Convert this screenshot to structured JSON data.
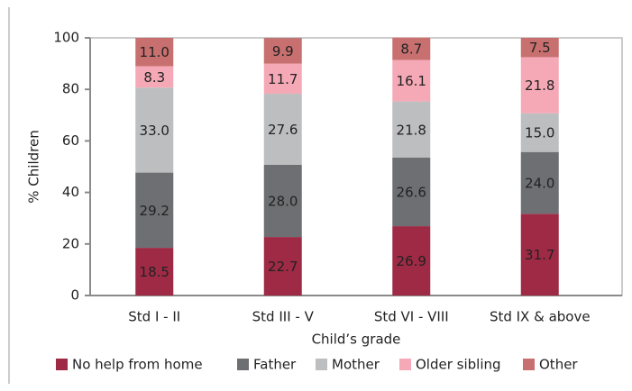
{
  "chart_data": {
    "type": "stacked_bar",
    "x_label": "Child’s grade",
    "y_label": "% Children",
    "categories": [
      "Std I - II",
      "Std III - V",
      "Std VI - VIII",
      "Std IX & above"
    ],
    "ylim": [
      0,
      100
    ],
    "yticks": [
      0,
      20,
      40,
      60,
      80,
      100
    ],
    "grid": false,
    "legend": "bottom",
    "series": [
      {
        "name": "No help from home",
        "color": "#9e2a45",
        "values": [
          18.5,
          22.7,
          26.9,
          31.7
        ],
        "value_labels": [
          "18.5",
          "22.7",
          "26.9",
          "31.7"
        ]
      },
      {
        "name": "Father",
        "color": "#6e6f73",
        "values": [
          29.2,
          28,
          26.6,
          24
        ],
        "value_labels": [
          "29.2",
          "28.0",
          "26.6",
          "24.0"
        ]
      },
      {
        "name": "Mother",
        "color": "#bdbec0",
        "values": [
          33,
          27.6,
          21.8,
          15
        ],
        "value_labels": [
          "33.0",
          "27.6",
          "21.8",
          "15.0"
        ]
      },
      {
        "name": "Older sibling",
        "color": "#f5a9b6",
        "values": [
          8.3,
          11.7,
          16.1,
          21.8
        ],
        "value_labels": [
          "8.3",
          "11.7",
          "16.1",
          "21.8"
        ]
      },
      {
        "name": "Other",
        "color": "#c8706f",
        "values": [
          11,
          9.9,
          8.7,
          7.5
        ],
        "value_labels": [
          "11.0",
          "9.9",
          "8.7",
          "7.5"
        ]
      }
    ]
  }
}
